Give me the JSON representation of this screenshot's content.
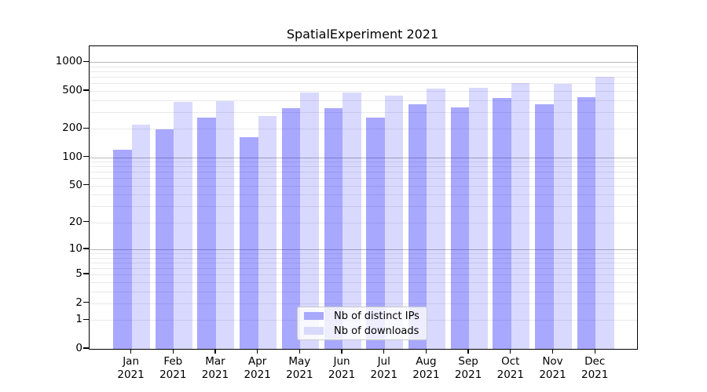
{
  "figure_title": "SpatialExperiment 2021",
  "chart_data": {
    "type": "bar",
    "title": "SpatialExperiment 2021",
    "categories": [
      "Jan",
      "Feb",
      "Mar",
      "Apr",
      "May",
      "Jun",
      "Jul",
      "Aug",
      "Sep",
      "Oct",
      "Nov",
      "Dec"
    ],
    "year_label": "2021",
    "series": [
      {
        "name": "Nb of distinct IPs",
        "values": [
          121,
          198,
          264,
          163,
          326,
          328,
          261,
          360,
          336,
          420,
          361,
          432
        ]
      },
      {
        "name": "Nb of downloads",
        "values": [
          222,
          380,
          388,
          270,
          478,
          484,
          449,
          530,
          540,
          603,
          591,
          706
        ]
      }
    ],
    "xlabel": "",
    "ylabel": "",
    "y_ticks": [
      0,
      1,
      2,
      5,
      10,
      20,
      50,
      100,
      200,
      500,
      1000
    ],
    "scale": "log10(value+1)",
    "ylim": [
      0,
      1460
    ],
    "grid": "minor gridlines at 2-9 per decade, darker at powers of 10",
    "legend_position": "inside-bottom-center"
  },
  "colors": {
    "bar_dark": "rgba(0,0,255,0.34)",
    "bar_light": "rgba(0,0,255,0.15)",
    "legend_swatch_dark": "#a9a9fb",
    "legend_swatch_light": "#d9d9fc",
    "grid_major": "#b9b9b9",
    "grid_minor": "#e9e9e9",
    "axis": "#000000"
  }
}
